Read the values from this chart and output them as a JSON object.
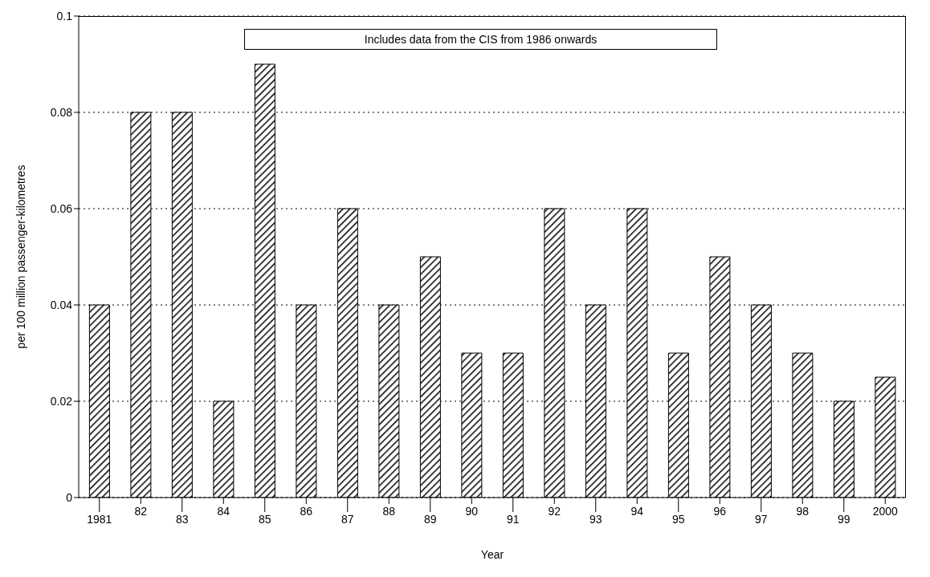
{
  "chart_data": {
    "type": "bar",
    "xlabel": "Year",
    "ylabel": "per 100 million passenger-kilometres",
    "annotations": [
      "Includes data from the CIS from 1986 onwards"
    ],
    "categories": [
      "1981",
      "82",
      "83",
      "84",
      "85",
      "86",
      "87",
      "88",
      "89",
      "90",
      "91",
      "92",
      "93",
      "94",
      "95",
      "96",
      "97",
      "98",
      "99",
      "2000"
    ],
    "values": [
      0.04,
      0.08,
      0.08,
      0.02,
      0.09,
      0.04,
      0.06,
      0.04,
      0.05,
      0.03,
      0.03,
      0.06,
      0.04,
      0.06,
      0.03,
      0.05,
      0.04,
      0.03,
      0.02,
      0.025
    ],
    "color": "#000000",
    "ylim": [
      0,
      0.1
    ],
    "yticks": [
      0,
      0.02,
      0.04,
      0.06,
      0.08,
      0.1
    ],
    "grid": "y"
  }
}
